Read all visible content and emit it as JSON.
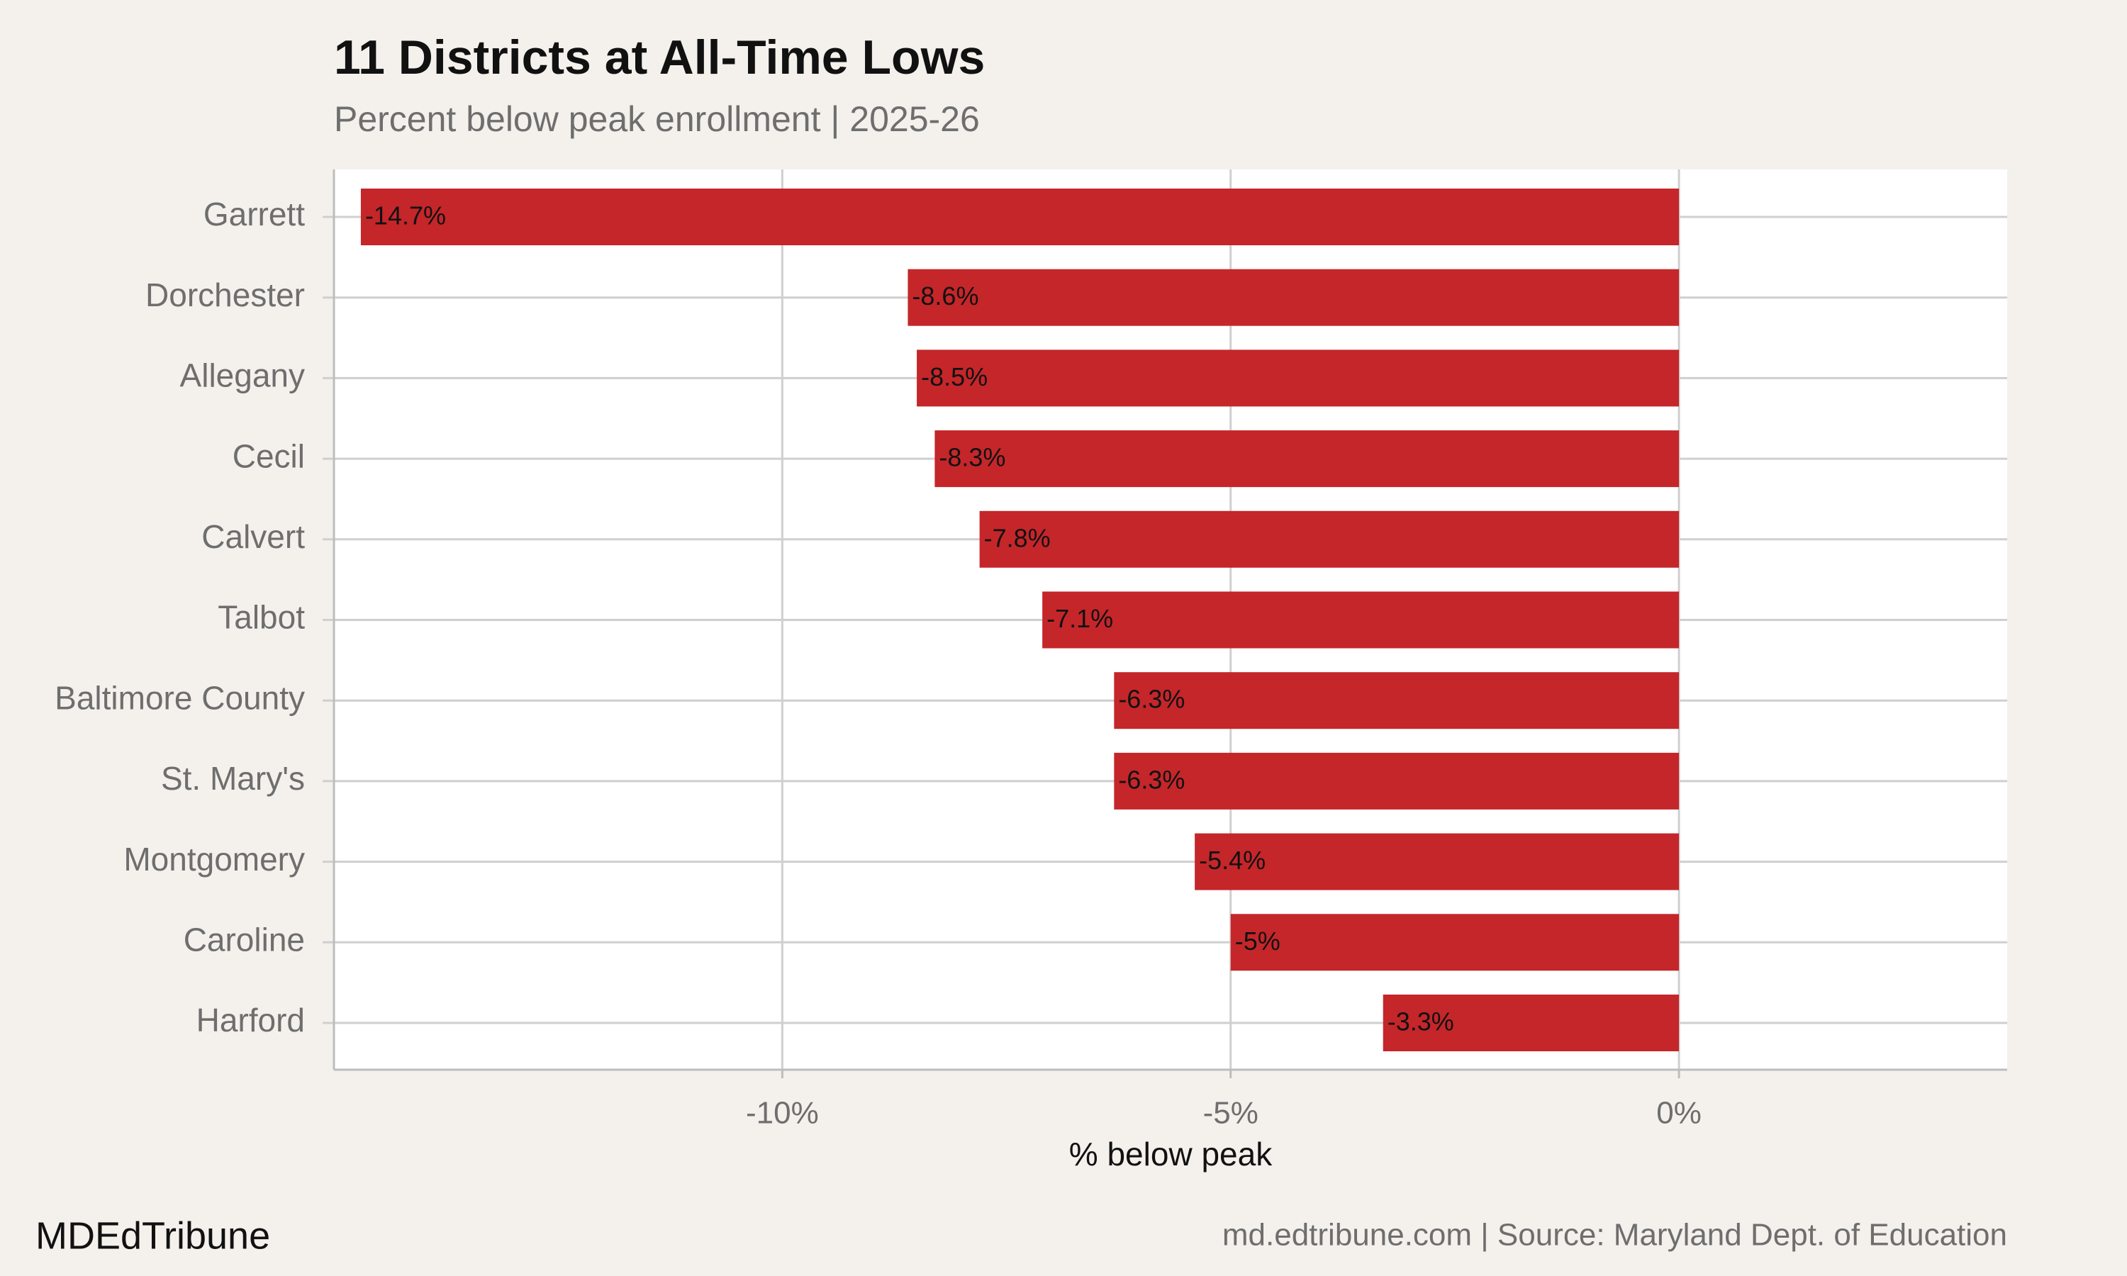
{
  "chart_data": {
    "type": "bar",
    "orientation": "horizontal",
    "title": "11 Districts at All-Time Lows",
    "subtitle": "Percent below peak enrollment | 2025-26",
    "x_label": "% below peak",
    "categories": [
      "Garrett",
      "Dorchester",
      "Allegany",
      "Cecil",
      "Calvert",
      "Talbot",
      "Baltimore County",
      "St. Mary's",
      "Montgomery",
      "Caroline",
      "Harford"
    ],
    "values": [
      -14.7,
      -8.6,
      -8.5,
      -8.3,
      -7.8,
      -7.1,
      -6.3,
      -6.3,
      -5.4,
      -5,
      -3.3
    ],
    "value_labels": [
      "-14.7%",
      "-8.6%",
      "-8.5%",
      "-8.3%",
      "-7.8%",
      "-7.1%",
      "-6.3%",
      "-6.3%",
      "-5.4%",
      "-5%",
      "-3.3%"
    ],
    "color": "#c4262a",
    "xlim": [
      -15,
      3.66
    ],
    "xticks": [
      {
        "value": -10,
        "label": "-10%"
      },
      {
        "value": -5,
        "label": "-5%"
      },
      {
        "value": 0,
        "label": "0%"
      }
    ],
    "grid": true,
    "footer_left": "MDEdTribune",
    "footer_right": "md.edtribune.com | Source: Maryland Dept. of Education"
  }
}
